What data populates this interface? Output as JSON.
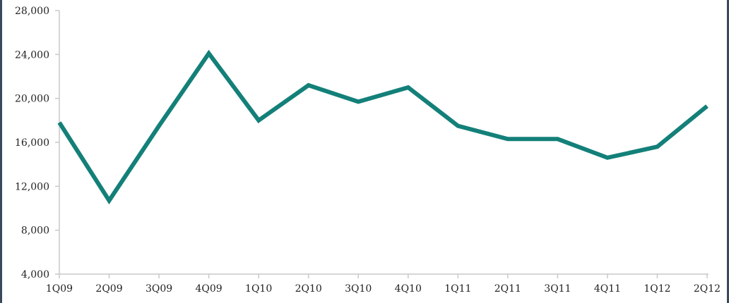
{
  "chart_data": {
    "type": "line",
    "title": "",
    "xlabel": "",
    "ylabel": "",
    "categories": [
      "1Q09",
      "2Q09",
      "3Q09",
      "4Q09",
      "1Q10",
      "2Q10",
      "3Q10",
      "4Q10",
      "1Q11",
      "2Q11",
      "3Q11",
      "4Q11",
      "1Q12",
      "2Q12"
    ],
    "series": [
      {
        "values": [
          17800,
          10700,
          17500,
          24100,
          18000,
          21200,
          19700,
          21000,
          17500,
          16300,
          16300,
          14600,
          15600,
          19300
        ],
        "color": "#138079"
      }
    ],
    "ylim": [
      4000,
      28000
    ],
    "yticks": [
      "4,000",
      "8,000",
      "12,000",
      "16,000",
      "20,000",
      "24,000",
      "28,000"
    ],
    "ytick_values": [
      4000,
      8000,
      12000,
      16000,
      20000,
      24000,
      28000
    ],
    "grid": false,
    "legend": "none",
    "axis_color": "#c8c8c8"
  }
}
